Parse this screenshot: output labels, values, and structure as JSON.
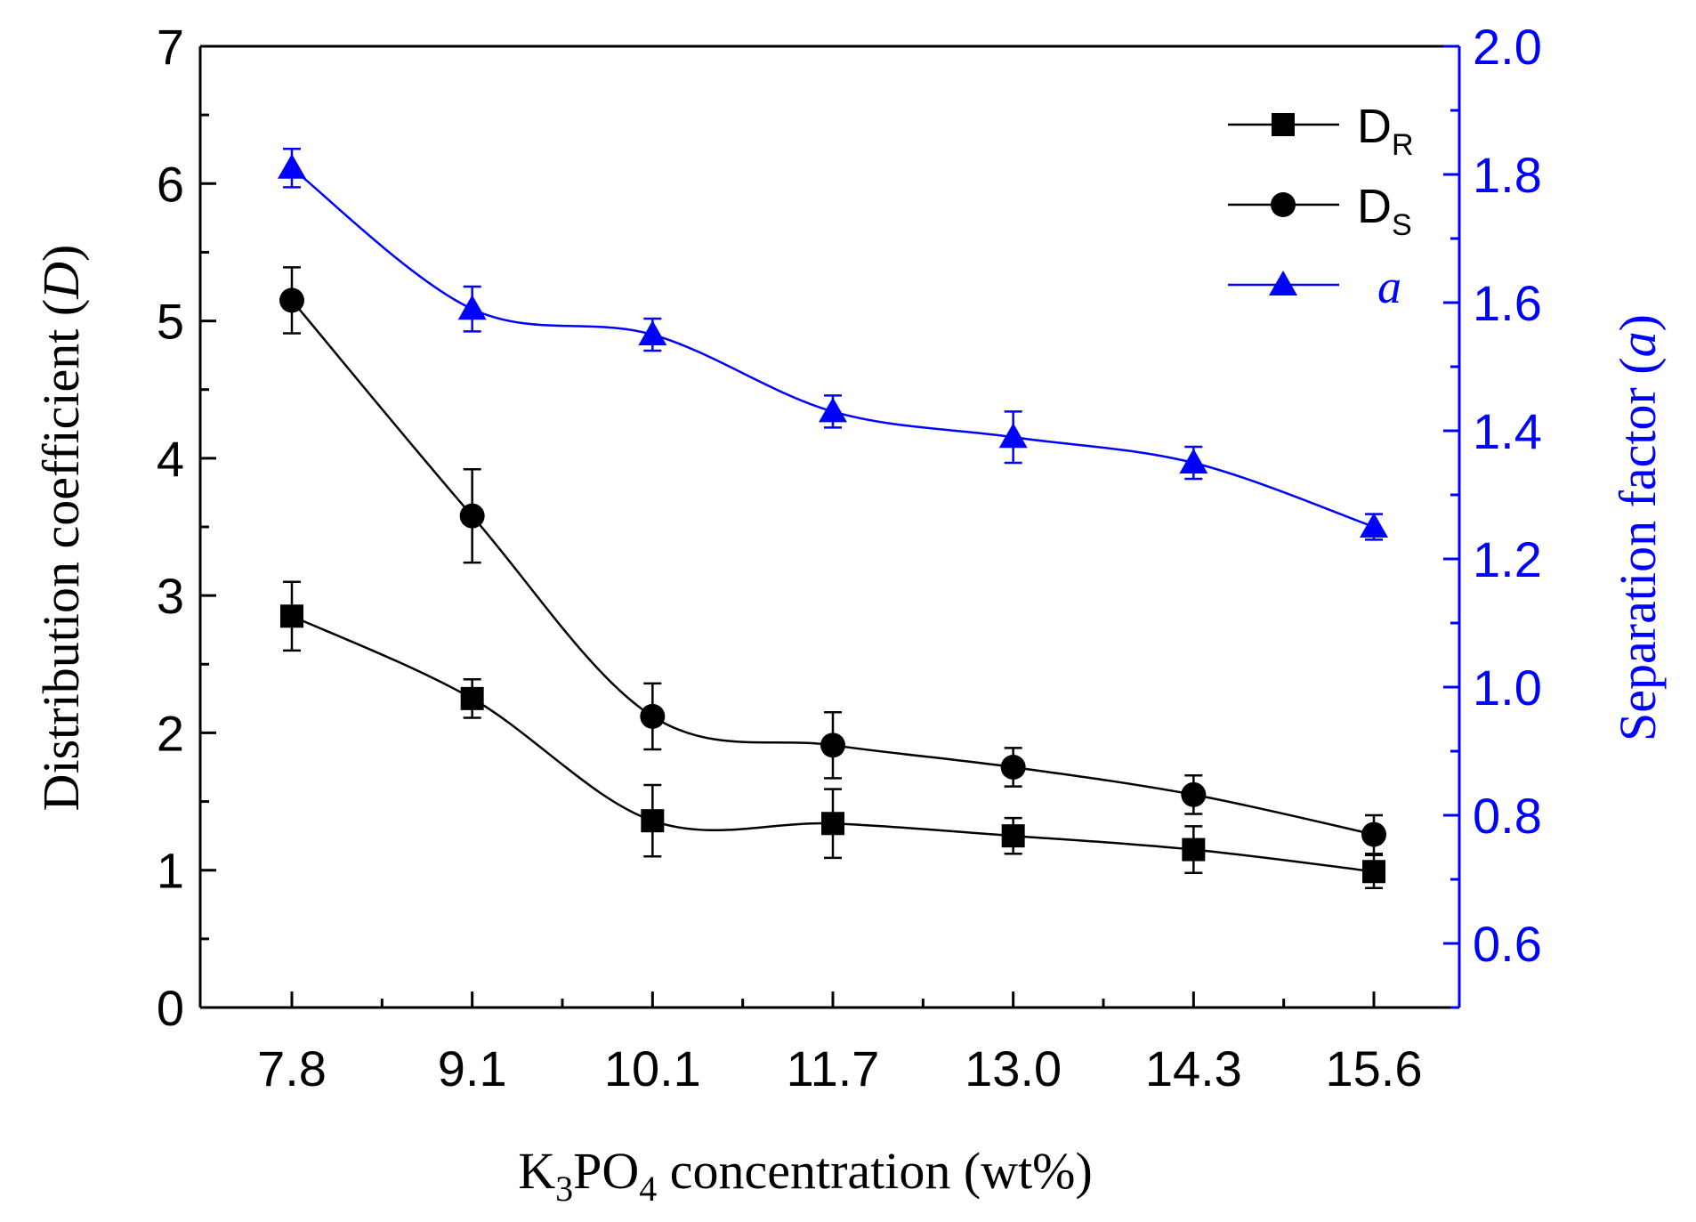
{
  "chart_data": {
    "type": "line",
    "categories": [
      "7.8",
      "9.1",
      "10.1",
      "11.7",
      "13.0",
      "14.3",
      "15.6"
    ],
    "xlabel": {
      "prefix": "K",
      "sub1": "3",
      "mid": "PO",
      "sub2": "4",
      "suffix": " concentration (wt%)"
    },
    "ylabel_left": {
      "text": "Distribution coefficient (",
      "italic": "D",
      "close": ")"
    },
    "ylabel_right": {
      "text": "Separation factor (",
      "italic": "a",
      "close": ")"
    },
    "ylim_left": [
      0,
      7
    ],
    "ylim_right": [
      0.5,
      2.0
    ],
    "yticks_left": [
      "0",
      "1",
      "2",
      "3",
      "4",
      "5",
      "6",
      "7"
    ],
    "yticks_right": [
      "0.6",
      "0.8",
      "1.0",
      "1.2",
      "1.4",
      "1.6",
      "1.8",
      "2.0"
    ],
    "series": [
      {
        "name": "D",
        "sub": "R",
        "axis": "left",
        "marker": "square",
        "color": "#000000",
        "values": [
          2.85,
          2.25,
          1.36,
          1.34,
          1.25,
          1.15,
          0.99
        ],
        "errors": [
          0.25,
          0.14,
          0.26,
          0.25,
          0.13,
          0.17,
          0.12
        ]
      },
      {
        "name": "D",
        "sub": "S",
        "axis": "left",
        "marker": "circle",
        "color": "#000000",
        "values": [
          5.15,
          3.58,
          2.12,
          1.91,
          1.75,
          1.55,
          1.26
        ],
        "errors": [
          0.24,
          0.34,
          0.24,
          0.24,
          0.14,
          0.14,
          0.14
        ]
      },
      {
        "name": "a",
        "sub": "",
        "axis": "right",
        "marker": "triangle",
        "color": "#0000ff",
        "values": [
          1.81,
          1.59,
          1.55,
          1.43,
          1.39,
          1.35,
          1.25
        ],
        "errors": [
          0.03,
          0.035,
          0.025,
          0.025,
          0.04,
          0.025,
          0.02
        ]
      }
    ]
  }
}
